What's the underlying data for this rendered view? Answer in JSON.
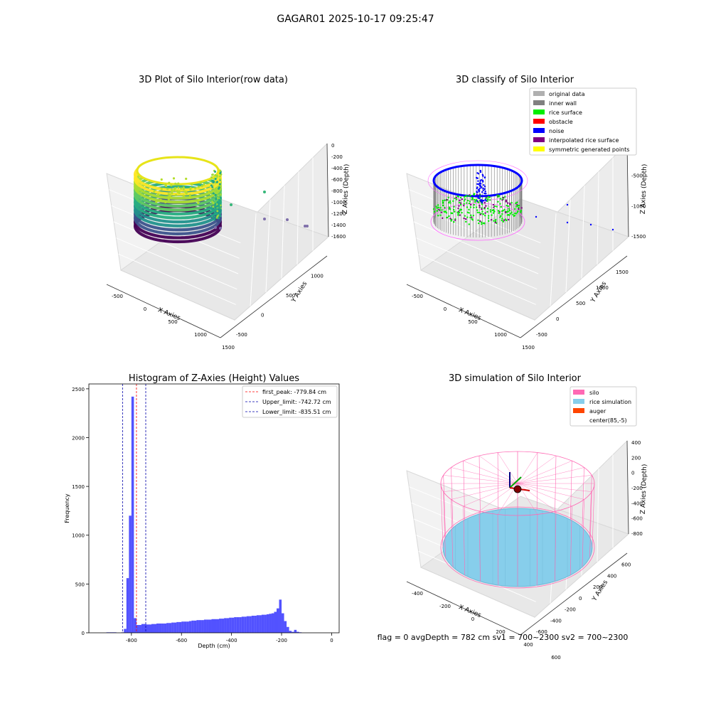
{
  "figure": {
    "suptitle": "GAGAR01 2025-10-17 09:25:47",
    "status_line": "flag = 0     avgDepth = 782 cm  sv1 = 700~2300  sv2 = 700~2300"
  },
  "chart_data": [
    {
      "type": "scatter3d",
      "title": "3D Plot of Silo Interior(row data)",
      "xlabel": "X Axies",
      "ylabel": "Y Axies",
      "zlabel": "Z Axies (Depth)",
      "x_ticks": [
        "-500",
        "0",
        "500",
        "1000",
        "1500"
      ],
      "y_ticks": [
        "-500",
        "0",
        "500",
        "1000"
      ],
      "z_ticks": [
        "0",
        "-200",
        "-400",
        "-600",
        "-800",
        "-1000",
        "-1200",
        "-1400",
        "-1600"
      ],
      "colormap": "viridis"
    },
    {
      "type": "scatter3d",
      "title": "3D classify of Silo Interior",
      "xlabel": "X Axies",
      "ylabel": "Y Axies",
      "zlabel": "Z Axies (Depth)",
      "x_ticks": [
        "-500",
        "0",
        "500",
        "1000",
        "1500"
      ],
      "y_ticks": [
        "-500",
        "0",
        "500",
        "1000",
        "1500"
      ],
      "z_ticks": [
        "0",
        "-500",
        "-1000",
        "-1500"
      ],
      "legend": [
        {
          "label": "original data",
          "color": "#b0b0b0"
        },
        {
          "label": "inner wall",
          "color": "#808080"
        },
        {
          "label": "rice surface",
          "color": "#00ee00"
        },
        {
          "label": "obstacle",
          "color": "#ff0000"
        },
        {
          "label": "noise",
          "color": "#0000ff"
        },
        {
          "label": "interpolated rice surface",
          "color": "#800080"
        },
        {
          "label": "symmetric generated points",
          "color": "#ffff00"
        }
      ]
    },
    {
      "type": "bar",
      "title": "Histogram of Z-Axies (Height) Values",
      "xlabel": "Depth (cm)",
      "ylabel": "Frequency",
      "xlim": [
        -970,
        30
      ],
      "ylim": [
        0,
        2550
      ],
      "x_ticks": [
        "-800",
        "-600",
        "-400",
        "-200",
        "0"
      ],
      "y_ticks": [
        "0",
        "500",
        "1000",
        "1500",
        "2000",
        "2500"
      ],
      "bar_color": "#0000ff",
      "bin_width": 10,
      "bin_starts": [
        -900,
        -890,
        -880,
        -870,
        -860,
        -850,
        -840,
        -830,
        -820,
        -810,
        -800,
        -790,
        -780,
        -770,
        -760,
        -750,
        -740,
        -730,
        -720,
        -710,
        -700,
        -690,
        -680,
        -670,
        -660,
        -650,
        -640,
        -630,
        -620,
        -610,
        -600,
        -590,
        -580,
        -570,
        -560,
        -550,
        -540,
        -530,
        -520,
        -510,
        -500,
        -490,
        -480,
        -470,
        -460,
        -450,
        -440,
        -430,
        -420,
        -410,
        -400,
        -390,
        -380,
        -370,
        -360,
        -350,
        -340,
        -330,
        -320,
        -310,
        -300,
        -290,
        -280,
        -270,
        -260,
        -250,
        -240,
        -230,
        -220,
        -210,
        -200,
        -190,
        -180,
        -170,
        -160,
        -150,
        -140,
        -130,
        -120,
        -110,
        -100,
        -90,
        -80,
        -70,
        -60,
        -50,
        -40,
        -30,
        -20,
        -10
      ],
      "values": [
        5,
        5,
        5,
        5,
        0,
        0,
        5,
        40,
        560,
        1200,
        2420,
        150,
        80,
        80,
        90,
        90,
        85,
        85,
        90,
        90,
        95,
        95,
        95,
        95,
        100,
        100,
        105,
        105,
        110,
        110,
        115,
        115,
        115,
        120,
        125,
        125,
        130,
        130,
        130,
        135,
        135,
        135,
        140,
        140,
        140,
        145,
        145,
        150,
        150,
        155,
        155,
        160,
        160,
        160,
        165,
        165,
        170,
        170,
        175,
        175,
        180,
        180,
        185,
        185,
        190,
        195,
        200,
        215,
        250,
        340,
        200,
        120,
        60,
        20,
        10,
        30,
        10,
        5,
        0,
        0,
        0,
        0,
        0,
        0,
        0,
        0,
        0,
        0,
        0,
        0
      ],
      "vlines": [
        {
          "label": "first_peak: -779.84 cm",
          "x": -779.84,
          "color": "#ff0000"
        },
        {
          "label": "Upper_limit: -742.72 cm",
          "x": -742.72,
          "color": "#0000aa"
        },
        {
          "label": "Lower_limit: -835.51 cm",
          "x": -835.51,
          "color": "#0000aa"
        }
      ],
      "legend_position": "top-right"
    },
    {
      "type": "surface3d",
      "title": "3D simulation of Silo Interior",
      "xlabel": "X Axies",
      "ylabel": "Y Axies",
      "zlabel": "Z Axies (Depth)",
      "x_ticks": [
        "-400",
        "-200",
        "0",
        "200",
        "400",
        "600"
      ],
      "y_ticks": [
        "-600",
        "-400",
        "-200",
        "0",
        "200",
        "400",
        "600"
      ],
      "z_ticks": [
        "400",
        "200",
        "0",
        "-200",
        "-400",
        "-600",
        "-800"
      ],
      "legend": [
        {
          "label": "silo",
          "color": "#ff69b4"
        },
        {
          "label": "rice simulation",
          "color": "#87ceeb"
        },
        {
          "label": "auger",
          "color": "#ff4500"
        },
        {
          "label": "center(85,-5)",
          "color": "#ffffff"
        }
      ]
    }
  ]
}
